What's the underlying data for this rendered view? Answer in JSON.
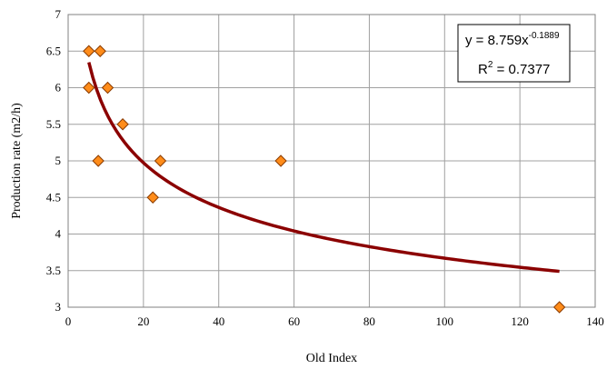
{
  "chart_data": {
    "type": "scatter",
    "xlabel": "Old Index",
    "ylabel": "Production rate (m2/h)",
    "xlim": [
      0,
      140
    ],
    "ylim": [
      3,
      7
    ],
    "x_ticks": [
      0,
      20,
      40,
      60,
      80,
      100,
      120,
      140
    ],
    "y_ticks": [
      3,
      3.5,
      4,
      4.5,
      5,
      5.5,
      6,
      6.5,
      7
    ],
    "grid": true,
    "series": [
      {
        "marker": "diamond",
        "color": "#ff8c1a",
        "points": [
          {
            "x": 5.5,
            "y": 6.5
          },
          {
            "x": 8.5,
            "y": 6.5
          },
          {
            "x": 5.5,
            "y": 6.0
          },
          {
            "x": 10.5,
            "y": 6.0
          },
          {
            "x": 14.5,
            "y": 5.5
          },
          {
            "x": 8.0,
            "y": 5.0
          },
          {
            "x": 24.5,
            "y": 5.0
          },
          {
            "x": 56.5,
            "y": 5.0
          },
          {
            "x": 22.5,
            "y": 4.5
          },
          {
            "x": 130.5,
            "y": 3.0
          }
        ]
      }
    ],
    "trendline": {
      "kind": "power",
      "a": 8.759,
      "b": -0.1889,
      "x_range": [
        5.5,
        130.5
      ],
      "color": "#8b0000"
    },
    "annotation": {
      "eq_base": "y = 8.759x",
      "eq_exp": "-0.1889",
      "r2_base": "R",
      "r2_exp": "2",
      "r2_value": " = 0.7377"
    }
  }
}
